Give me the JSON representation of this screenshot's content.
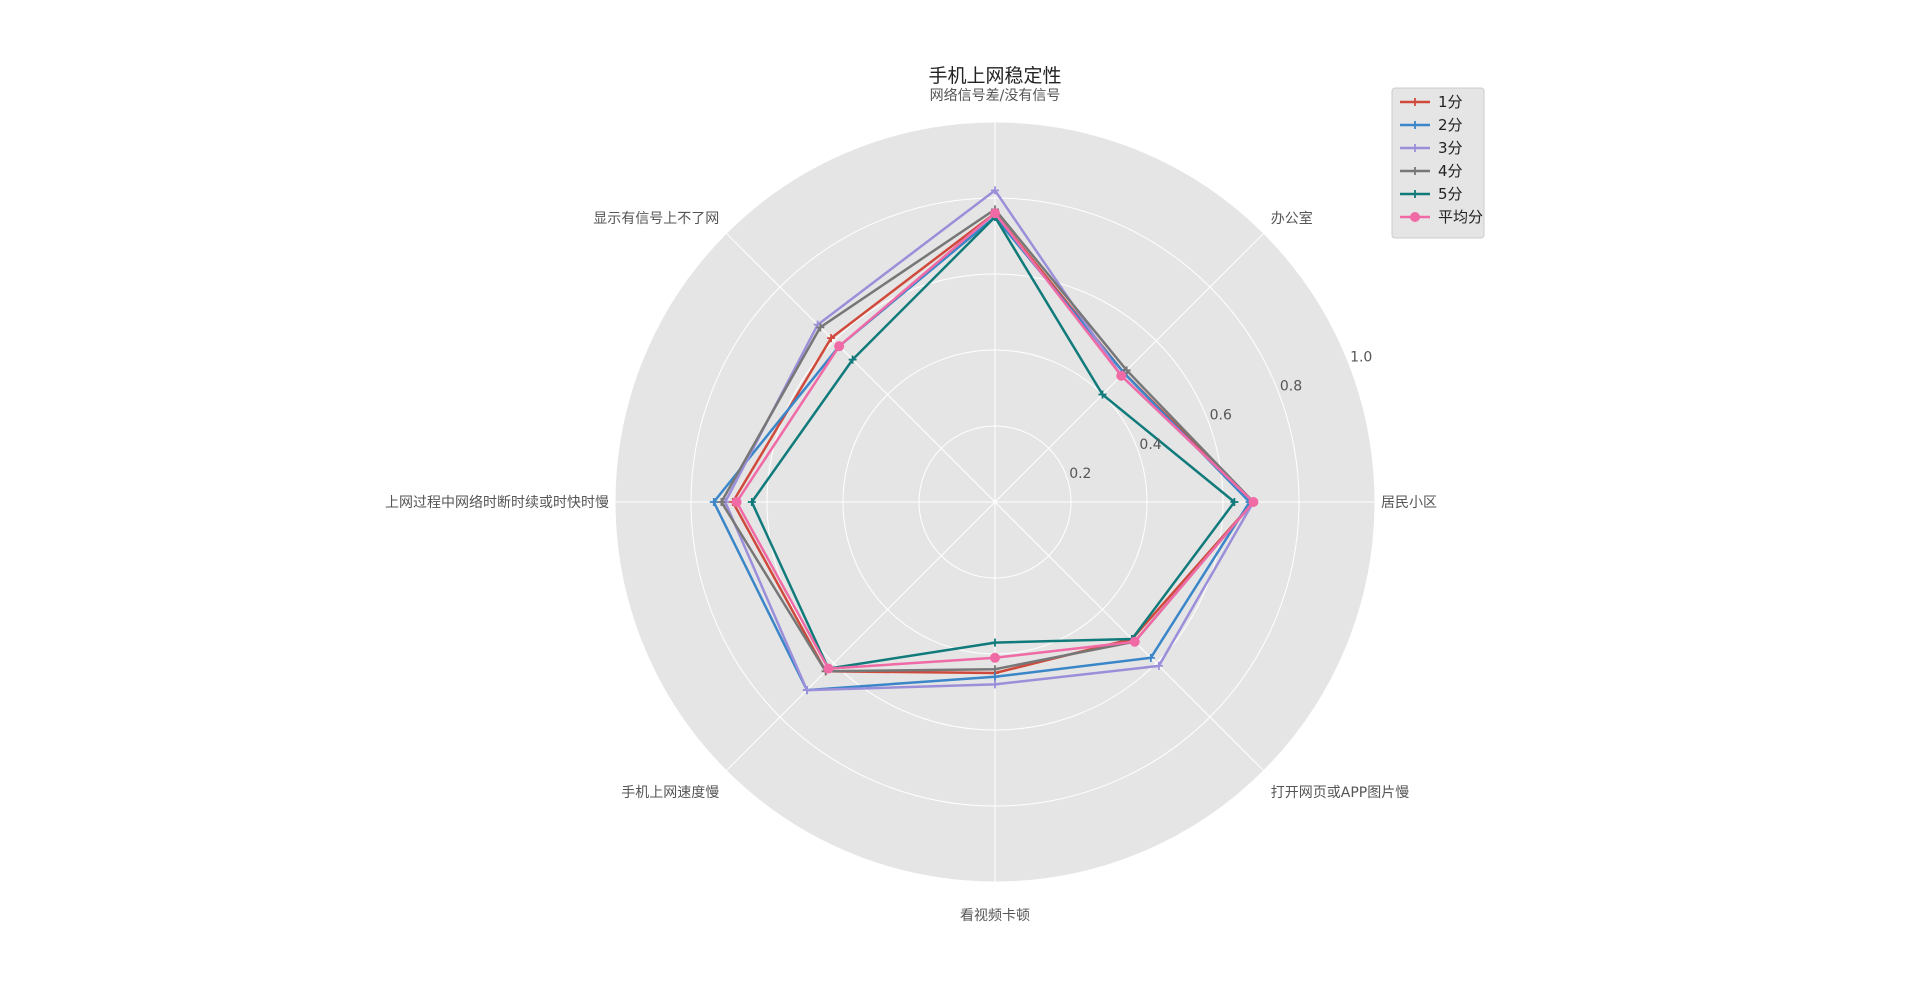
{
  "chart_data": {
    "type": "radar",
    "title": "手机上网稳定性",
    "categories": [
      "居民小区",
      "办公室",
      "网络信号差/没有信号",
      "显示有信号上不了网",
      "上网过程中网络时断时续或时快时慢",
      "手机上网速度慢",
      "看视频卡顿",
      "打开网页或APP图片慢"
    ],
    "radial_ticks": [
      0.2,
      0.4,
      0.6,
      0.8,
      1.0
    ],
    "radial_tick_labels": [
      "0.2",
      "0.4",
      "0.6",
      "0.8",
      "1.0"
    ],
    "rlim": [
      0,
      1.0
    ],
    "grid": true,
    "legend_position": "top-right",
    "series": [
      {
        "name": "1分",
        "color": "#d04a3c",
        "marker": "plus",
        "values": [
          0.68,
          0.48,
          0.76,
          0.61,
          0.69,
          0.63,
          0.45,
          0.51
        ]
      },
      {
        "name": "2分",
        "color": "#3a86c8",
        "marker": "plus",
        "values": [
          0.67,
          0.48,
          0.75,
          0.58,
          0.74,
          0.7,
          0.46,
          0.58
        ]
      },
      {
        "name": "3分",
        "color": "#9b8fda",
        "marker": "plus",
        "values": [
          0.68,
          0.47,
          0.82,
          0.66,
          0.71,
          0.7,
          0.48,
          0.61
        ]
      },
      {
        "name": "4分",
        "color": "#777777",
        "marker": "plus",
        "values": [
          0.68,
          0.49,
          0.77,
          0.65,
          0.72,
          0.63,
          0.44,
          0.52
        ]
      },
      {
        "name": "5分",
        "color": "#117a7a",
        "marker": "plus",
        "values": [
          0.63,
          0.4,
          0.75,
          0.53,
          0.64,
          0.62,
          0.37,
          0.51
        ]
      },
      {
        "name": "平均分",
        "color": "#f06aa6",
        "marker": "circle",
        "values": [
          0.68,
          0.47,
          0.76,
          0.58,
          0.68,
          0.62,
          0.41,
          0.52
        ]
      }
    ]
  }
}
